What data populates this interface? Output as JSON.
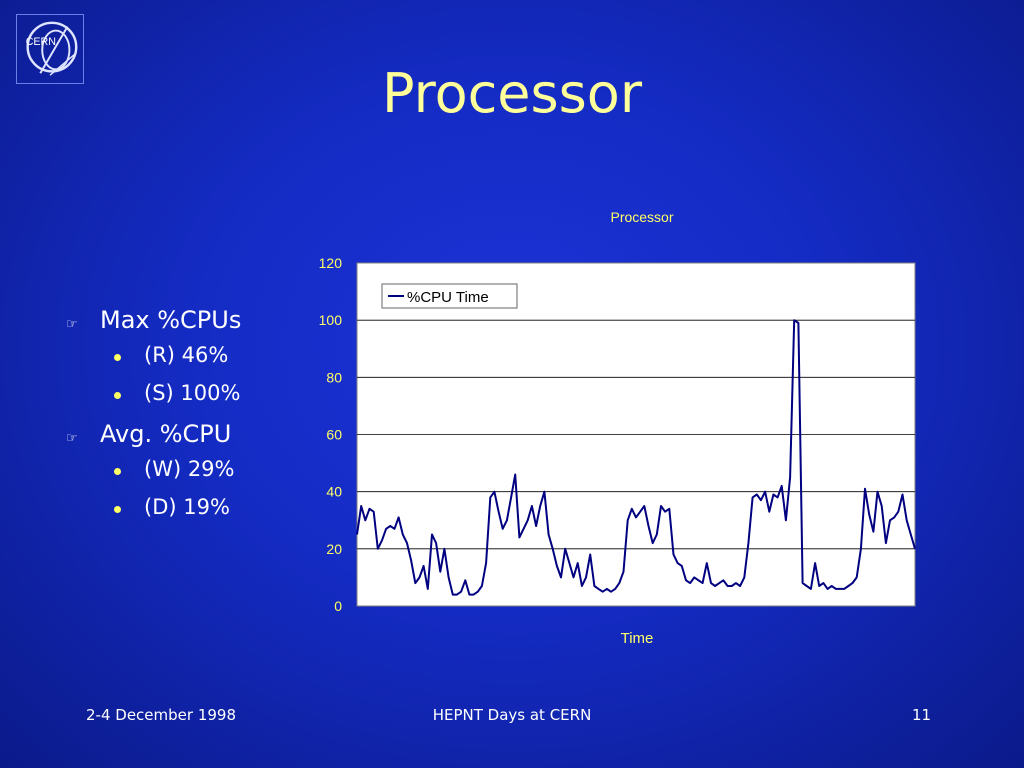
{
  "slide": {
    "title": "Processor",
    "logo_text": "CERN",
    "bullets": [
      {
        "label": "Max %CPUs",
        "items": [
          "(R) 46%",
          "(S) 100%"
        ]
      },
      {
        "label": "Avg. %CPU",
        "items": [
          "(W) 29%",
          "(D) 19%"
        ]
      }
    ],
    "footer": {
      "date": "2-4 December 1998",
      "event": "HEPNT Days at CERN",
      "page": "11"
    }
  },
  "colors": {
    "title": "#ffff99",
    "axis_text": "#ffff66",
    "series": "#000080",
    "background": "#1a2fd0",
    "plot_area": "#ffffff"
  },
  "chart_data": {
    "type": "line",
    "title": "Processor",
    "xlabel": "Time",
    "ylabel": "",
    "ylim": [
      0,
      120
    ],
    "yticks": [
      "0",
      "20",
      "40",
      "60",
      "80",
      "100",
      "120"
    ],
    "grid": true,
    "legend": "top-left",
    "series": [
      {
        "name": "%CPU Time",
        "values": [
          25,
          35,
          30,
          34,
          33,
          20,
          23,
          27,
          28,
          27,
          31,
          25,
          22,
          16,
          8,
          10,
          14,
          6,
          25,
          22,
          12,
          20,
          10,
          4,
          4,
          5,
          9,
          4,
          4,
          5,
          7,
          15,
          38,
          40,
          33,
          27,
          30,
          38,
          46,
          24,
          27,
          30,
          35,
          28,
          35,
          40,
          25,
          20,
          14,
          10,
          20,
          15,
          10,
          15,
          7,
          10,
          18,
          7,
          6,
          5,
          6,
          5,
          6,
          8,
          12,
          30,
          34,
          31,
          33,
          35,
          28,
          22,
          25,
          35,
          33,
          34,
          18,
          15,
          14,
          9,
          8,
          10,
          9,
          8,
          15,
          8,
          7,
          8,
          9,
          7,
          7,
          8,
          7,
          10,
          22,
          38,
          39,
          37,
          40,
          33,
          39,
          38,
          42,
          30,
          45,
          100,
          99,
          8,
          7,
          6,
          15,
          7,
          8,
          6,
          7,
          6,
          6,
          6,
          7,
          8,
          10,
          20,
          41,
          32,
          26,
          40,
          35,
          22,
          30,
          31,
          33,
          39,
          30,
          25,
          20
        ]
      }
    ]
  }
}
